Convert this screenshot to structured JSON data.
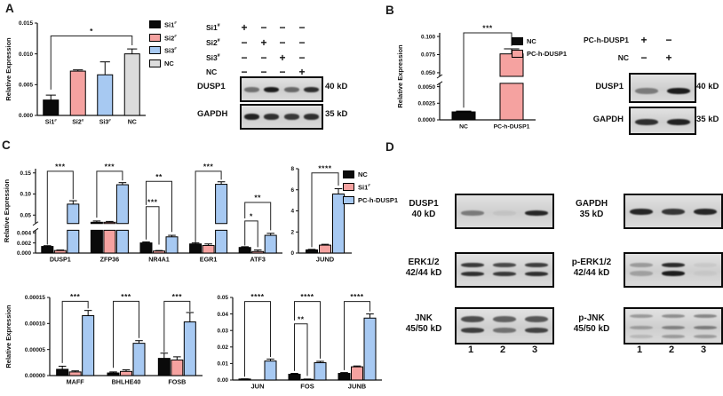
{
  "panels": {
    "a": {
      "letter": "A"
    },
    "b": {
      "letter": "B"
    },
    "c": {
      "letter": "C"
    },
    "d": {
      "letter": "D"
    }
  },
  "colors": {
    "black": "#0a0a0a",
    "pink": "#f5a2a0",
    "blue": "#a7c9f2",
    "gray": "#dcdcdc",
    "axis": "#111111",
    "band": "#141414"
  },
  "legends": {
    "a": {
      "items": [
        {
          "label": "Si1#",
          "color": "#0a0a0a"
        },
        {
          "label": "Si2#",
          "color": "#f5a2a0"
        },
        {
          "label": "Si3#",
          "color": "#a7c9f2"
        },
        {
          "label": "NC",
          "color": "#dcdcdc"
        }
      ]
    },
    "b": {
      "items": [
        {
          "label": "NC",
          "color": "#0a0a0a"
        },
        {
          "label": "PC-h-DUSP1",
          "color": "#f5a2a0"
        }
      ]
    },
    "c": {
      "items": [
        {
          "label": "NC",
          "color": "#0a0a0a"
        },
        {
          "label": "Si1#",
          "color": "#f5a2a0"
        },
        {
          "label": "PC-h-DUSP1",
          "color": "#a7c9f2"
        }
      ]
    }
  },
  "chart_data": [
    {
      "id": "panel-a-qpcr",
      "type": "bar",
      "title": "",
      "ylabel": "Relative Expression",
      "categories": [
        "Si1#",
        "Si2#",
        "Si3#",
        "NC"
      ],
      "series": [
        {
          "name": "Relative Expression",
          "colors": [
            "#0a0a0a",
            "#f5a2a0",
            "#a7c9f2",
            "#dcdcdc"
          ],
          "values": [
            0.0025,
            0.0072,
            0.0066,
            0.01
          ],
          "errors": [
            0.0008,
            0.0002,
            0.0021,
            0.0008
          ]
        }
      ],
      "segments": [
        {
          "range": [
            0,
            0.015
          ],
          "frac": [
            0,
            1
          ],
          "ticks": [
            {
              "t": "0.000",
              "v": 0
            },
            {
              "t": "0.005",
              "v": 0.005
            },
            {
              "t": "0.010",
              "v": 0.01
            },
            {
              "t": "0.015",
              "v": 0.015
            }
          ]
        }
      ],
      "significance": [
        {
          "a": [
            0,
            0
          ],
          "b": [
            3,
            0
          ],
          "top": 0.86,
          "da": 0.28,
          "db": 0.76,
          "label": "*"
        }
      ]
    },
    {
      "id": "panel-b-qpcr",
      "type": "bar",
      "title": "",
      "ylabel": "Relative Expression",
      "categories": [
        "NC",
        "PC-h-DUSP1"
      ],
      "series": [
        {
          "name": "Relative Expression",
          "colors": [
            "#0a0a0a",
            "#f5a2a0"
          ],
          "values": [
            0.0012,
            0.076
          ],
          "errors": [
            0.00012,
            0.007
          ]
        }
      ],
      "segments": [
        {
          "range": [
            0,
            0.0055
          ],
          "frac": [
            0,
            0.42
          ],
          "ticks": [
            {
              "t": "0.0000",
              "v": 0
            },
            {
              "t": "0.0025",
              "v": 0.0025
            },
            {
              "t": "0.0050",
              "v": 0.005
            }
          ]
        },
        {
          "range": [
            0.045,
            0.105
          ],
          "frac": [
            0.5,
            1
          ],
          "ticks": [
            {
              "t": "0.050",
              "v": 0.05
            },
            {
              "t": "0.075",
              "v": 0.075
            },
            {
              "t": "0.100",
              "v": 0.1
            }
          ]
        }
      ],
      "significance": [
        {
          "a": [
            0,
            0
          ],
          "b": [
            1,
            0
          ],
          "top": 1.0,
          "da": 0.14,
          "db": 0.85,
          "label": "***"
        }
      ]
    },
    {
      "id": "panel-c-genes-row1",
      "type": "bar",
      "title": "",
      "ylabel": "Relative Expression",
      "categories": [
        "DUSP1",
        "ZFP36",
        "NR4A1",
        "EGR1",
        "ATF3"
      ],
      "series": [
        {
          "name": "NC",
          "color": "#0a0a0a",
          "values": [
            0.0013,
            0.033,
            0.002,
            0.0018,
            0.0011
          ],
          "errors": [
            0.00015,
            0.003,
            0.0002,
            0.0002,
            0.00015
          ]
        },
        {
          "name": "Si1#",
          "color": "#f5a2a0",
          "values": [
            0.0005,
            0.033,
            0.0004,
            0.0015,
            0.0003
          ],
          "errors": [
            0.0001,
            0.002,
            0.0001,
            0.0003,
            0.0003
          ]
        },
        {
          "name": "PC-h-DUSP1",
          "color": "#a7c9f2",
          "values": [
            0.076,
            0.122,
            0.0032,
            0.123,
            0.0035
          ],
          "errors": [
            0.008,
            0.005,
            0.0003,
            0.006,
            0.0004
          ]
        }
      ],
      "segments": [
        {
          "range": [
            0,
            0.0045
          ],
          "frac": [
            0,
            0.27
          ],
          "ticks": [
            {
              "t": "0.000",
              "v": 0
            },
            {
              "t": "0.002",
              "v": 0.002
            },
            {
              "t": "0.004",
              "v": 0.004
            }
          ]
        },
        {
          "range": [
            0.03,
            0.16
          ],
          "frac": [
            0.35,
            1
          ],
          "ticks": [
            {
              "t": "0.05",
              "v": 0.05
            },
            {
              "t": "0.10",
              "v": 0.1
            },
            {
              "t": "0.15",
              "v": 0.15
            }
          ]
        }
      ],
      "significance": [
        {
          "a": [
            0,
            0
          ],
          "b": [
            0,
            2
          ],
          "top": 0.97,
          "da": 0.1,
          "db": 0.64,
          "label": "***"
        },
        {
          "a": [
            1,
            0
          ],
          "b": [
            1,
            2
          ],
          "top": 0.97,
          "da": 0.42,
          "db": 0.86,
          "label": "***"
        },
        {
          "a": [
            2,
            0
          ],
          "b": [
            2,
            1
          ],
          "top": 0.55,
          "da": 0.16,
          "db": 0.1,
          "label": "***"
        },
        {
          "a": [
            2,
            0
          ],
          "b": [
            2,
            2
          ],
          "top": 0.85,
          "da": 0.57,
          "db": 0.25,
          "label": "**"
        },
        {
          "a": [
            3,
            0
          ],
          "b": [
            3,
            2
          ],
          "top": 0.97,
          "da": 0.12,
          "db": 0.87,
          "label": "***"
        },
        {
          "a": [
            4,
            0
          ],
          "b": [
            4,
            1
          ],
          "top": 0.38,
          "da": 0.09,
          "db": 0.07,
          "label": "*"
        },
        {
          "a": [
            4,
            0
          ],
          "b": [
            4,
            2
          ],
          "top": 0.6,
          "da": 0.41,
          "db": 0.27,
          "label": "**"
        }
      ]
    },
    {
      "id": "panel-c-jund",
      "type": "bar",
      "title": "",
      "ylabel": "",
      "categories": [
        "JUND"
      ],
      "series": [
        {
          "name": "NC",
          "color": "#0a0a0a",
          "values": [
            0.3
          ],
          "errors": [
            0.05
          ]
        },
        {
          "name": "Si1#",
          "color": "#f5a2a0",
          "values": [
            0.75
          ],
          "errors": [
            0.08
          ]
        },
        {
          "name": "PC-h-DUSP1",
          "color": "#a7c9f2",
          "values": [
            5.6
          ],
          "errors": [
            0.5
          ]
        }
      ],
      "segments": [
        {
          "range": [
            0,
            8
          ],
          "frac": [
            0,
            1
          ],
          "ticks": [
            {
              "t": "0",
              "v": 0
            },
            {
              "t": "2",
              "v": 2
            },
            {
              "t": "4",
              "v": 4
            },
            {
              "t": "6",
              "v": 6
            },
            {
              "t": "8",
              "v": 8
            }
          ]
        }
      ],
      "significance": [
        {
          "a": [
            0,
            0
          ],
          "b": [
            0,
            2
          ],
          "top": 0.95,
          "da": 0.07,
          "db": 0.8,
          "label": "****"
        }
      ]
    },
    {
      "id": "panel-c-genes-row2",
      "type": "bar",
      "title": "",
      "ylabel": "Relative Expression",
      "categories": [
        "MAFF",
        "BHLHE40",
        "FOSB"
      ],
      "series": [
        {
          "name": "NC",
          "color": "#0a0a0a",
          "values": [
            1.2e-05,
            5e-06,
            3.3e-05
          ],
          "errors": [
            6e-06,
            2e-06,
            1e-05
          ]
        },
        {
          "name": "Si1#",
          "color": "#f5a2a0",
          "values": [
            7e-06,
            8e-06,
            3e-05
          ],
          "errors": [
            2e-06,
            3e-06,
            6e-06
          ]
        },
        {
          "name": "PC-h-DUSP1",
          "color": "#a7c9f2",
          "values": [
            0.000115,
            6.2e-05,
            0.000103
          ],
          "errors": [
            1e-05,
            5e-06,
            1.8e-05
          ]
        }
      ],
      "segments": [
        {
          "range": [
            0,
            0.00015
          ],
          "frac": [
            0,
            1
          ],
          "ticks": [
            {
              "t": "0.00000",
              "v": 0
            },
            {
              "t": "0.00005",
              "v": 5e-05
            },
            {
              "t": "0.00010",
              "v": 0.0001
            },
            {
              "t": "0.00015",
              "v": 0.00015
            }
          ]
        }
      ],
      "significance": [
        {
          "a": [
            0,
            0
          ],
          "b": [
            0,
            2
          ],
          "top": 0.95,
          "da": 0.16,
          "db": 0.86,
          "label": "***"
        },
        {
          "a": [
            1,
            0
          ],
          "b": [
            1,
            2
          ],
          "top": 0.95,
          "da": 0.1,
          "db": 0.48,
          "label": "***"
        },
        {
          "a": [
            2,
            0
          ],
          "b": [
            2,
            2
          ],
          "top": 0.95,
          "da": 0.3,
          "db": 0.82,
          "label": "***"
        }
      ]
    },
    {
      "id": "panel-c-genes-row3",
      "type": "bar",
      "title": "",
      "ylabel": "",
      "categories": [
        "JUN",
        "FOS",
        "JUNB"
      ],
      "series": [
        {
          "name": "NC",
          "color": "#0a0a0a",
          "values": [
            0.0006,
            0.0035,
            0.004
          ],
          "errors": [
            0.0001,
            0.0005,
            0.0005
          ]
        },
        {
          "name": "Si1#",
          "color": "#f5a2a0",
          "values": [
            8e-05,
            0.0004,
            0.008
          ],
          "errors": [
            3e-05,
            0.0002,
            0.0005
          ]
        },
        {
          "name": "PC-h-DUSP1",
          "color": "#a7c9f2",
          "values": [
            0.0115,
            0.0105,
            0.0375
          ],
          "errors": [
            0.0012,
            0.0008,
            0.0025
          ]
        }
      ],
      "segments": [
        {
          "range": [
            0,
            0.05
          ],
          "frac": [
            0,
            1
          ],
          "ticks": [
            {
              "t": "0.00",
              "v": 0
            },
            {
              "t": "0.01",
              "v": 0.01
            },
            {
              "t": "0.02",
              "v": 0.02
            },
            {
              "t": "0.03",
              "v": 0.03
            },
            {
              "t": "0.04",
              "v": 0.04
            },
            {
              "t": "0.05",
              "v": 0.05
            }
          ]
        }
      ],
      "significance": [
        {
          "a": [
            0,
            0
          ],
          "b": [
            0,
            2
          ],
          "top": 0.95,
          "da": 0.04,
          "db": 0.28,
          "label": "****"
        },
        {
          "a": [
            1,
            0
          ],
          "b": [
            1,
            1
          ],
          "top": 0.68,
          "da": 0.11,
          "db": 0.05,
          "label": "**"
        },
        {
          "a": [
            1,
            0
          ],
          "b": [
            1,
            2
          ],
          "top": 0.95,
          "da": 0.72,
          "db": 0.26,
          "label": "****"
        },
        {
          "a": [
            2,
            0
          ],
          "b": [
            2,
            2
          ],
          "top": 0.95,
          "da": 0.12,
          "db": 0.83,
          "label": "****"
        }
      ]
    }
  ],
  "western_blots": {
    "panel_a": {
      "conditions": [
        {
          "label": "Si1#",
          "signs": [
            "+",
            "−",
            "−",
            "−"
          ]
        },
        {
          "label": "Si2#",
          "signs": [
            "−",
            "+",
            "−",
            "−"
          ]
        },
        {
          "label": "Si3#",
          "signs": [
            "−",
            "−",
            "+",
            "−"
          ]
        },
        {
          "label": "NC",
          "signs": [
            "−",
            "−",
            "−",
            "+"
          ]
        }
      ],
      "blots": [
        {
          "protein": "DUSP1",
          "size": "40 kD",
          "rows": [
            {
              "y": 0.5,
              "h": 6,
              "i": [
                0.5,
                0.95,
                0.55,
                0.85
              ]
            }
          ]
        },
        {
          "protein": "GAPDH",
          "size": "35 kD",
          "rows": [
            {
              "y": 0.5,
              "h": 7,
              "i": [
                0.92,
                0.85,
                0.8,
                0.85
              ]
            }
          ]
        }
      ]
    },
    "panel_b": {
      "conditions": [
        {
          "label": "PC-h-DUSP1",
          "signs": [
            "+",
            "−"
          ]
        },
        {
          "label": "NC",
          "signs": [
            "−",
            "+"
          ]
        }
      ],
      "blots": [
        {
          "protein": "DUSP1",
          "size": "40 kD",
          "rows": [
            {
              "y": 0.6,
              "h": 7,
              "i": [
                0.45,
                0.95
              ]
            }
          ]
        },
        {
          "protein": "GAPDH",
          "size": "35 kD",
          "rows": [
            {
              "y": 0.55,
              "h": 7,
              "i": [
                0.85,
                0.92
              ]
            }
          ]
        }
      ]
    },
    "panel_d": {
      "blots": [
        {
          "protein": "DUSP1",
          "size": "40 kD",
          "rows": [
            {
              "y": 0.55,
              "h": 6,
              "i": [
                0.45,
                0.06,
                0.9
              ]
            }
          ]
        },
        {
          "protein": "GAPDH",
          "size": "35 kD",
          "rows": [
            {
              "y": 0.52,
              "h": 7,
              "i": [
                0.9,
                0.82,
                0.9
              ]
            }
          ]
        },
        {
          "protein": "ERK1/2",
          "size": "42/44 kD",
          "rows": [
            {
              "y": 0.34,
              "h": 5,
              "i": [
                0.8,
                0.72,
                0.78
              ]
            },
            {
              "y": 0.62,
              "h": 5,
              "i": [
                0.85,
                0.8,
                0.85
              ]
            }
          ]
        },
        {
          "protein": "p-ERK1/2",
          "size": "42/44 kD",
          "rows": [
            {
              "y": 0.34,
              "h": 5,
              "i": [
                0.3,
                0.88,
                0.06
              ]
            },
            {
              "y": 0.62,
              "h": 6,
              "i": [
                0.25,
                0.95,
                0.04
              ]
            }
          ]
        },
        {
          "protein": "JNK",
          "size": "45/50 kD",
          "rows": [
            {
              "y": 0.3,
              "h": 7,
              "i": [
                0.7,
                0.6,
                0.65
              ]
            },
            {
              "y": 0.62,
              "h": 6,
              "i": [
                0.78,
                0.5,
                0.75
              ]
            }
          ]
        },
        {
          "protein": "p-JNK",
          "size": "45/50 kD",
          "rows": [
            {
              "y": 0.22,
              "h": 4,
              "i": [
                0.32,
                0.38,
                0.42
              ]
            },
            {
              "y": 0.55,
              "h": 4,
              "i": [
                0.28,
                0.42,
                0.45
              ]
            },
            {
              "y": 0.82,
              "h": 4,
              "i": [
                0.15,
                0.3,
                0.3
              ]
            }
          ]
        }
      ],
      "lane_numbers": [
        "1",
        "2",
        "3"
      ]
    }
  }
}
